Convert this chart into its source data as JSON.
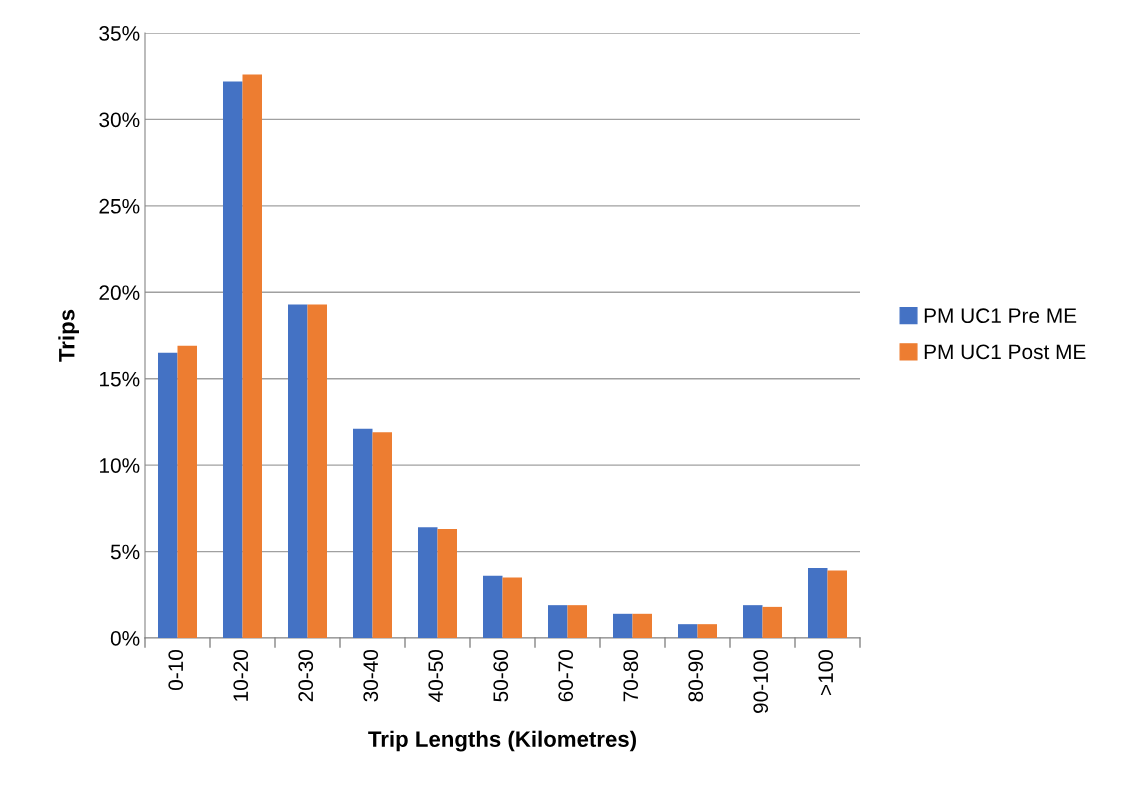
{
  "chart_data": {
    "type": "bar",
    "xlabel": "Trip Lengths (Kilometres)",
    "ylabel": "Trips",
    "categories": [
      "0-10",
      "10-20",
      "20-30",
      "30-40",
      "40-50",
      "50-60",
      "60-70",
      "70-80",
      "80-90",
      "90-100",
      ">100"
    ],
    "series": [
      {
        "name": "PM UC1 Pre ME",
        "color": "#4472c4",
        "values": [
          16.5,
          32.2,
          19.3,
          12.1,
          6.4,
          3.6,
          1.9,
          1.4,
          0.8,
          1.9,
          4.05
        ]
      },
      {
        "name": "PM UC1 Post ME",
        "color": "#ed7d31",
        "values": [
          16.9,
          32.6,
          19.3,
          11.9,
          6.3,
          3.5,
          1.9,
          1.4,
          0.8,
          1.8,
          3.9
        ]
      }
    ],
    "ylim": [
      0,
      35
    ],
    "yticks": [
      {
        "value": 0,
        "label": "0%"
      },
      {
        "value": 5,
        "label": "5%"
      },
      {
        "value": 10,
        "label": "10%"
      },
      {
        "value": 15,
        "label": "15%"
      },
      {
        "value": 20,
        "label": "20%"
      },
      {
        "value": 25,
        "label": "25%"
      },
      {
        "value": 30,
        "label": "30%"
      },
      {
        "value": 35,
        "label": "35%"
      }
    ],
    "grid": "y",
    "legend": "right"
  }
}
